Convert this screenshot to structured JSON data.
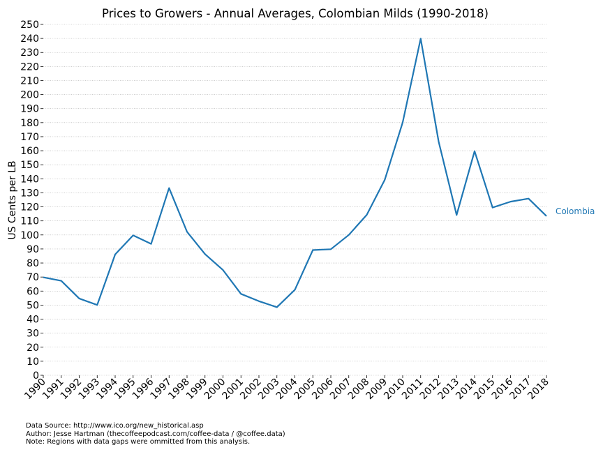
{
  "chart_data": {
    "type": "line",
    "title": "Prices to Growers - Annual Averages, Colombian Milds (1990-2018)",
    "xlabel": "",
    "ylabel": "US Cents per LB",
    "ylim": [
      0,
      250
    ],
    "ytick_step": 10,
    "grid": "horizontal dotted",
    "x": [
      "1990",
      "1991",
      "1992",
      "1993",
      "1994",
      "1995",
      "1996",
      "1997",
      "1998",
      "1999",
      "2000",
      "2001",
      "2002",
      "2003",
      "2004",
      "2005",
      "2006",
      "2007",
      "2008",
      "2009",
      "2010",
      "2011",
      "2012",
      "2013",
      "2014",
      "2015",
      "2016",
      "2017",
      "2018"
    ],
    "series": [
      {
        "name": "Colombia",
        "color": "#1f77b4",
        "values": [
          69.8,
          67.3,
          54.7,
          50.1,
          86.1,
          99.7,
          93.6,
          133.4,
          102.2,
          86.3,
          75.0,
          58.0,
          52.8,
          48.5,
          60.9,
          89.2,
          89.8,
          100.0,
          114.3,
          139.2,
          180.2,
          239.9,
          166.5,
          114.2,
          159.7,
          119.5,
          123.7,
          125.9,
          113.4
        ]
      }
    ]
  },
  "footnotes": {
    "source": "Data Source: http://www.ico.org/new_historical.asp",
    "author": "Author: Jesse Hartman (thecoffeepodcast.com/coffee-data / @coffee.data)",
    "note": "Note: Regions with data gaps were ommitted from this analysis."
  }
}
